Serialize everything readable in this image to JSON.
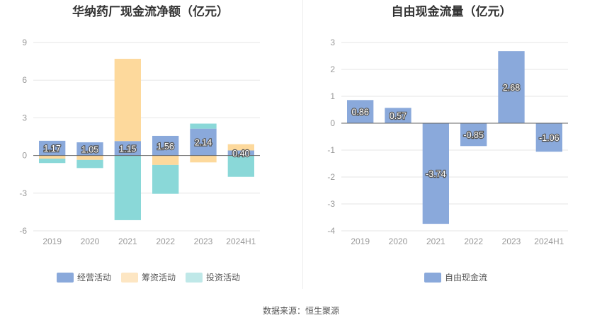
{
  "source_text": "数据来源：恒生聚源",
  "chart_data": [
    {
      "type": "bar",
      "stacked": true,
      "title": "华纳药厂现金流净额（亿元）",
      "categories": [
        "2019",
        "2020",
        "2021",
        "2022",
        "2023",
        "2024H1"
      ],
      "ylim": [
        -6,
        9
      ],
      "yticks": [
        -6,
        -3,
        0,
        3,
        6,
        9
      ],
      "grid": true,
      "legend_position": "bottom",
      "series": [
        {
          "name": "经营活动",
          "color": "#8aa9db",
          "values": [
            1.17,
            1.05,
            1.15,
            1.56,
            2.14,
            0.4
          ],
          "labeled": true
        },
        {
          "name": "筹资活动",
          "color": "#fdd99c",
          "values": [
            -0.25,
            -0.35,
            6.55,
            -0.75,
            -0.55,
            0.5
          ],
          "labeled": false
        },
        {
          "name": "投资活动",
          "color": "#8ad8d8",
          "values": [
            -0.35,
            -0.65,
            -5.15,
            -2.3,
            0.4,
            -1.7
          ],
          "labeled": false
        }
      ]
    },
    {
      "type": "bar",
      "title": "自由现金流量（亿元）",
      "categories": [
        "2019",
        "2020",
        "2021",
        "2022",
        "2023",
        "2024H1"
      ],
      "ylim": [
        -4,
        3
      ],
      "yticks": [
        -4,
        -3,
        -2,
        -1,
        0,
        1,
        2,
        3
      ],
      "grid": true,
      "legend_position": "bottom",
      "series": [
        {
          "name": "自由现金流",
          "color": "#8aa9db",
          "values": [
            0.86,
            0.57,
            -3.74,
            -0.85,
            2.68,
            -1.06
          ],
          "labeled": true
        }
      ]
    }
  ]
}
